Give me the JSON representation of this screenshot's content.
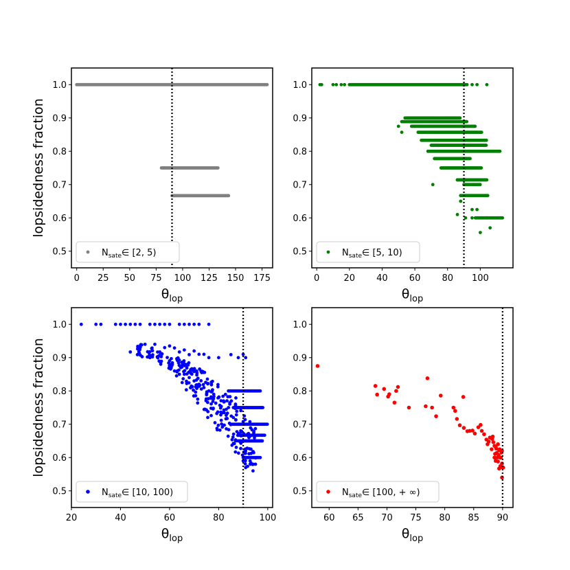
{
  "chart_data": [
    {
      "type": "scatter",
      "color": "#808080",
      "xlim": [
        -5,
        185
      ],
      "ylim": [
        0.45,
        1.05
      ],
      "xticks": [
        0,
        25,
        50,
        75,
        100,
        125,
        150,
        175
      ],
      "yticks": [
        0.5,
        0.6,
        0.7,
        0.8,
        0.9,
        1.0
      ],
      "xlabel": "θ",
      "xlabel_sub": "lop",
      "ylabel": "lopsidedness fraction",
      "vline": 90,
      "legend": {
        "symbol": "N",
        "sub": "sate",
        "text": "∈ [2, 5)"
      },
      "bands": [
        {
          "y": 1.0,
          "x_min": 0,
          "x_max": 180
        },
        {
          "y": 0.75,
          "x_min": 80,
          "x_max": 134
        },
        {
          "y": 0.6667,
          "x_min": 90,
          "x_max": 144
        }
      ],
      "points": []
    },
    {
      "type": "scatter",
      "color": "#008000",
      "xlim": [
        -3,
        120
      ],
      "ylim": [
        0.45,
        1.05
      ],
      "xticks": [
        0,
        20,
        40,
        60,
        80,
        100
      ],
      "yticks": [
        0.5,
        0.6,
        0.7,
        0.8,
        0.9,
        1.0
      ],
      "xlabel": "θ",
      "xlabel_sub": "lop",
      "ylabel": "",
      "vline": 90,
      "legend": {
        "symbol": "N",
        "sub": "sate",
        "text": "∈ [5, 10)"
      },
      "bands": [
        {
          "y": 1.0,
          "x_min": 20,
          "x_max": 92
        },
        {
          "y": 0.9,
          "x_min": 55,
          "x_max": 88
        },
        {
          "y": 0.889,
          "x_min": 52,
          "x_max": 92
        },
        {
          "y": 0.875,
          "x_min": 58,
          "x_max": 97
        },
        {
          "y": 0.857,
          "x_min": 62,
          "x_max": 101
        },
        {
          "y": 0.833,
          "x_min": 64,
          "x_max": 104
        },
        {
          "y": 0.818,
          "x_min": 70,
          "x_max": 104
        },
        {
          "y": 0.8,
          "x_min": 68,
          "x_max": 112
        },
        {
          "y": 0.778,
          "x_min": 72,
          "x_max": 94
        },
        {
          "y": 0.75,
          "x_min": 76,
          "x_max": 101
        },
        {
          "y": 0.714,
          "x_min": 86,
          "x_max": 104
        },
        {
          "y": 0.7,
          "x_min": 90,
          "x_max": 100
        },
        {
          "y": 0.667,
          "x_min": 88,
          "x_max": 105
        },
        {
          "y": 0.6,
          "x_min": 97,
          "x_max": 114
        }
      ],
      "points": [
        [
          2,
          1.0
        ],
        [
          3,
          1.0
        ],
        [
          10,
          1.0
        ],
        [
          12,
          1.0
        ],
        [
          15,
          1.0
        ],
        [
          17,
          1.0
        ],
        [
          95,
          1.0
        ],
        [
          98,
          1.0
        ],
        [
          104,
          1.0
        ],
        [
          52,
          0.857
        ],
        [
          50,
          0.875
        ],
        [
          54,
          0.9
        ],
        [
          71,
          0.7
        ],
        [
          86,
          0.714
        ],
        [
          88,
          0.65
        ],
        [
          86,
          0.61
        ],
        [
          95,
          0.625
        ],
        [
          98,
          0.625
        ],
        [
          104,
          0.6
        ],
        [
          106,
          0.57
        ],
        [
          100,
          0.556
        ],
        [
          91,
          0.6
        ],
        [
          95,
          0.6
        ]
      ]
    },
    {
      "type": "scatter",
      "color": "#0000ff",
      "xlim": [
        20,
        102
      ],
      "ylim": [
        0.45,
        1.05
      ],
      "xticks": [
        20,
        40,
        60,
        80,
        100
      ],
      "yticks": [
        0.5,
        0.6,
        0.7,
        0.8,
        0.9,
        1.0
      ],
      "xlabel": "θ",
      "xlabel_sub": "lop",
      "ylabel": "lopsidedness fraction",
      "vline": 90,
      "legend": {
        "symbol": "N",
        "sub": "sate",
        "text": "∈ [10, 100)"
      },
      "bands": [
        {
          "y": 0.8,
          "x_min": 84,
          "x_max": 97
        },
        {
          "y": 0.75,
          "x_min": 86,
          "x_max": 98
        },
        {
          "y": 0.7,
          "x_min": 85,
          "x_max": 100
        },
        {
          "y": 0.667,
          "x_min": 88,
          "x_max": 99
        },
        {
          "y": 0.65,
          "x_min": 88,
          "x_max": 98
        },
        {
          "y": 0.6,
          "x_min": 90,
          "x_max": 97
        }
      ],
      "cloud": [
        [
          48,
          0.94,
          0.9
        ],
        [
          52,
          0.93,
          0.9
        ],
        [
          56,
          0.92,
          0.88
        ],
        [
          60,
          0.91,
          0.86
        ],
        [
          64,
          0.9,
          0.84
        ],
        [
          66,
          0.895,
          0.82
        ],
        [
          68,
          0.89,
          0.8
        ],
        [
          70,
          0.88,
          0.78
        ],
        [
          72,
          0.87,
          0.76
        ],
        [
          74,
          0.86,
          0.74
        ],
        [
          76,
          0.85,
          0.72
        ],
        [
          78,
          0.84,
          0.7
        ],
        [
          80,
          0.82,
          0.68
        ],
        [
          82,
          0.8,
          0.66
        ],
        [
          84,
          0.79,
          0.64
        ],
        [
          86,
          0.78,
          0.62
        ],
        [
          88,
          0.76,
          0.6
        ],
        [
          90,
          0.74,
          0.58
        ],
        [
          92,
          0.72,
          0.57
        ],
        [
          94,
          0.7,
          0.56
        ]
      ],
      "points": [
        [
          24,
          1.0
        ],
        [
          30,
          1.0
        ],
        [
          32,
          1.0
        ],
        [
          38,
          1.0
        ],
        [
          40,
          1.0
        ],
        [
          42,
          1.0
        ],
        [
          44,
          1.0
        ],
        [
          46,
          1.0
        ],
        [
          48,
          1.0
        ],
        [
          52,
          1.0
        ],
        [
          54,
          1.0
        ],
        [
          56,
          1.0
        ],
        [
          58,
          1.0
        ],
        [
          60,
          1.0
        ],
        [
          64,
          1.0
        ],
        [
          66,
          1.0
        ],
        [
          68,
          1.0
        ],
        [
          70,
          1.0
        ],
        [
          72,
          1.0
        ],
        [
          76,
          1.0
        ],
        [
          44,
          0.917
        ],
        [
          48,
          0.935
        ],
        [
          50,
          0.94
        ],
        [
          52,
          0.9
        ],
        [
          54,
          0.94
        ],
        [
          56,
          0.917
        ],
        [
          58,
          0.93
        ],
        [
          60,
          0.935
        ],
        [
          62,
          0.929
        ],
        [
          64,
          0.917
        ],
        [
          66,
          0.923
        ],
        [
          68,
          0.909
        ],
        [
          70,
          0.92
        ],
        [
          72,
          0.91
        ],
        [
          74,
          0.91
        ],
        [
          76,
          0.9
        ],
        [
          80,
          0.9
        ],
        [
          85,
          0.909
        ],
        [
          88,
          0.9
        ],
        [
          90,
          0.91
        ],
        [
          91,
          0.9
        ],
        [
          60,
          0.87
        ],
        [
          62,
          0.86
        ],
        [
          64,
          0.85
        ],
        [
          66,
          0.85
        ],
        [
          68,
          0.84
        ],
        [
          70,
          0.83
        ],
        [
          72,
          0.82
        ],
        [
          74,
          0.81
        ],
        [
          76,
          0.8
        ],
        [
          78,
          0.79
        ],
        [
          80,
          0.78
        ],
        [
          82,
          0.77
        ],
        [
          84,
          0.75
        ],
        [
          86,
          0.72
        ],
        [
          88,
          0.7
        ],
        [
          89,
          0.68
        ],
        [
          90,
          0.65
        ],
        [
          91,
          0.62
        ],
        [
          92,
          0.6
        ],
        [
          93,
          0.58
        ],
        [
          94,
          0.56
        ],
        [
          91,
          0.57
        ],
        [
          90,
          0.59
        ],
        [
          95,
          0.58
        ]
      ]
    },
    {
      "type": "scatter",
      "color": "#ff0000",
      "xlim": [
        57,
        91.8
      ],
      "ylim": [
        0.45,
        1.05
      ],
      "xticks": [
        60,
        65,
        70,
        75,
        80,
        85,
        90
      ],
      "yticks": [
        0.5,
        0.6,
        0.7,
        0.8,
        0.9,
        1.0
      ],
      "xlabel": "θ",
      "xlabel_sub": "lop",
      "ylabel": "",
      "vline": 90,
      "legend": {
        "symbol": "N",
        "sub": "sate",
        "text": "∈ [100, + ∞)"
      },
      "bands": [],
      "points": [
        [
          58,
          0.875
        ],
        [
          68,
          0.815
        ],
        [
          68.3,
          0.789
        ],
        [
          69.5,
          0.806
        ],
        [
          70.2,
          0.783
        ],
        [
          70.4,
          0.79
        ],
        [
          71.3,
          0.765
        ],
        [
          71.6,
          0.8
        ],
        [
          71.9,
          0.812
        ],
        [
          73.8,
          0.75
        ],
        [
          76.7,
          0.754
        ],
        [
          77,
          0.838
        ],
        [
          77.8,
          0.75
        ],
        [
          78.5,
          0.724
        ],
        [
          79.3,
          0.786
        ],
        [
          81.5,
          0.75
        ],
        [
          81.8,
          0.74
        ],
        [
          82.1,
          0.716
        ],
        [
          82.6,
          0.697
        ],
        [
          83.2,
          0.782
        ],
        [
          83.3,
          0.689
        ],
        [
          83.9,
          0.679
        ],
        [
          84.3,
          0.68
        ],
        [
          84.8,
          0.681
        ],
        [
          85.2,
          0.672
        ],
        [
          85.8,
          0.691
        ],
        [
          86.2,
          0.698
        ],
        [
          86.4,
          0.68
        ],
        [
          86.8,
          0.67
        ],
        [
          87.2,
          0.654
        ],
        [
          87.4,
          0.64
        ],
        [
          87.6,
          0.648
        ],
        [
          87.8,
          0.66
        ],
        [
          88.1,
          0.625
        ],
        [
          88.2,
          0.656
        ],
        [
          88.3,
          0.663
        ],
        [
          88.4,
          0.646
        ],
        [
          88.6,
          0.635
        ],
        [
          88.7,
          0.611
        ],
        [
          88.8,
          0.633
        ],
        [
          88.9,
          0.627
        ],
        [
          89,
          0.614
        ],
        [
          89.1,
          0.6
        ],
        [
          89.2,
          0.64
        ],
        [
          89.3,
          0.608
        ],
        [
          89.4,
          0.622
        ],
        [
          89.5,
          0.625
        ],
        [
          89.6,
          0.6
        ],
        [
          89.7,
          0.6
        ],
        [
          89.8,
          0.615
        ],
        [
          89.9,
          0.62
        ],
        [
          89.9,
          0.582
        ],
        [
          89.2,
          0.588
        ],
        [
          88.8,
          0.59
        ],
        [
          89.6,
          0.574
        ],
        [
          90,
          0.57
        ],
        [
          90.1,
          0.57
        ],
        [
          89.9,
          0.54
        ],
        [
          89.4,
          0.567
        ],
        [
          88.6,
          0.6
        ]
      ]
    }
  ]
}
